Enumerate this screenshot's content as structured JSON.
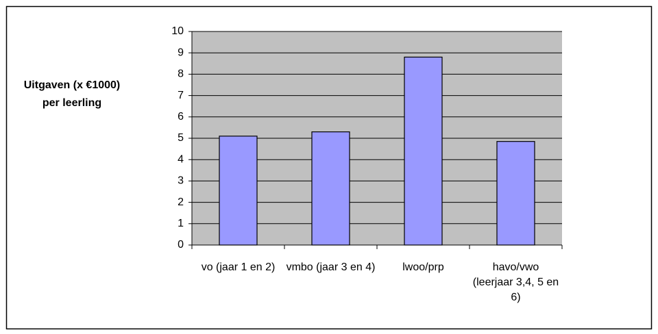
{
  "chart_data": {
    "type": "bar",
    "y_label": "Uitgaven (x €1000) per leerling",
    "categories": [
      "vo (jaar 1 en 2)",
      "vmbo (jaar 3 en 4)",
      "lwoo/prp",
      "havo/vwo (leerjaar 3,4, 5 en 6)"
    ],
    "values": [
      5.1,
      5.3,
      8.8,
      4.85
    ],
    "color": "#9999ff",
    "ylim": [
      0,
      10
    ],
    "yticks": [
      0,
      1,
      2,
      3,
      4,
      5,
      6,
      7,
      8,
      9,
      10
    ],
    "grid": true
  }
}
